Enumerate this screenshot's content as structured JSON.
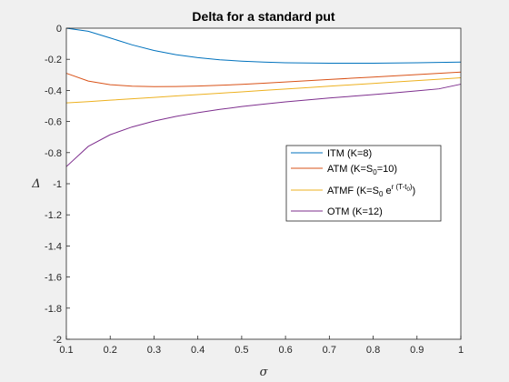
{
  "chart_data": {
    "type": "line",
    "title": "Delta for a standard put",
    "xlabel": "σ",
    "ylabel": "Δ",
    "xlim": [
      0.1,
      1
    ],
    "ylim": [
      -2,
      0
    ],
    "xticks": [
      "0.1",
      "0.2",
      "0.3",
      "0.4",
      "0.5",
      "0.6",
      "0.7",
      "0.8",
      "0.9",
      "1"
    ],
    "yticks": [
      "0",
      "-0.2",
      "-0.4",
      "-0.6",
      "-0.8",
      "-1",
      "-1.2",
      "-1.4",
      "-1.6",
      "-1.8",
      "-2"
    ],
    "grid": false,
    "legend_position": "right",
    "x": [
      0.1,
      0.15,
      0.2,
      0.25,
      0.3,
      0.35,
      0.4,
      0.45,
      0.5,
      0.55,
      0.6,
      0.65,
      0.7,
      0.75,
      0.8,
      0.85,
      0.9,
      0.95,
      1.0
    ],
    "series": [
      {
        "name": "ITM (K=8)",
        "legend_text": "ITM (K=8)",
        "color": "#0072bd",
        "values": [
          -0.0,
          -0.02,
          -0.063,
          -0.107,
          -0.143,
          -0.17,
          -0.189,
          -0.203,
          -0.212,
          -0.218,
          -0.222,
          -0.224,
          -0.225,
          -0.225,
          -0.225,
          -0.224,
          -0.222,
          -0.22,
          -0.218
        ]
      },
      {
        "name": "ATM (K=S0=10)",
        "legend_text": "ATM (K=S",
        "legend_sub": "0",
        "legend_tail": "=10)",
        "color": "#d95319",
        "values": [
          -0.29,
          -0.34,
          -0.363,
          -0.373,
          -0.376,
          -0.375,
          -0.372,
          -0.367,
          -0.361,
          -0.354,
          -0.346,
          -0.338,
          -0.33,
          -0.322,
          -0.314,
          -0.306,
          -0.298,
          -0.29,
          -0.282
        ]
      },
      {
        "name": "ATMF (K=S0 e^(r(T-t0)))",
        "legend_text": "ATMF (K=S",
        "legend_sub": "0",
        "legend_mid": " e",
        "legend_sup": "r (T-t",
        "legend_supsub": "0",
        "legend_suptail": ")",
        "legend_tail": ")",
        "color": "#edb120",
        "values": [
          -0.48,
          -0.472,
          -0.463,
          -0.454,
          -0.445,
          -0.436,
          -0.427,
          -0.418,
          -0.409,
          -0.4,
          -0.391,
          -0.382,
          -0.373,
          -0.364,
          -0.355,
          -0.346,
          -0.337,
          -0.328,
          -0.319
        ]
      },
      {
        "name": "OTM (K=12)",
        "legend_text": "OTM (K=12)",
        "color": "#7e2f8e",
        "values": [
          -0.89,
          -0.76,
          -0.685,
          -0.635,
          -0.597,
          -0.567,
          -0.543,
          -0.522,
          -0.504,
          -0.488,
          -0.474,
          -0.461,
          -0.449,
          -0.438,
          -0.427,
          -0.415,
          -0.403,
          -0.39,
          -0.36
        ]
      }
    ]
  }
}
